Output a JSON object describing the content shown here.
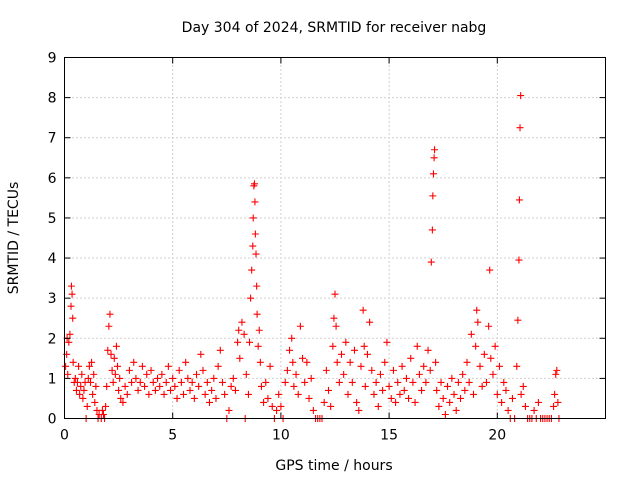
{
  "chart_data": {
    "type": "scatter",
    "title": "Day 304 of 2024, SRMTID for receiver nabg",
    "xlabel": "GPS time / hours",
    "ylabel": "SRMTID / TECUs",
    "xlim": [
      0,
      25
    ],
    "ylim": [
      0,
      9
    ],
    "xticks": [
      0,
      5,
      10,
      15,
      20
    ],
    "xtick_labels": [
      "0",
      "5",
      "10",
      "15",
      "20"
    ],
    "yticks": [
      0,
      1,
      2,
      3,
      4,
      5,
      6,
      7,
      8,
      9
    ],
    "ytick_labels": [
      "0",
      "1",
      "2",
      "3",
      "4",
      "5",
      "6",
      "7",
      "8",
      "9"
    ],
    "grid": true,
    "legend": "none",
    "marker": "plus",
    "series": [
      {
        "name": "nabg",
        "color": "#ff0000",
        "points": [
          [
            0.05,
            1.3
          ],
          [
            0.1,
            1.6
          ],
          [
            0.12,
            2.0
          ],
          [
            0.15,
            1.1
          ],
          [
            0.2,
            1.9
          ],
          [
            0.25,
            2.1
          ],
          [
            0.3,
            2.8
          ],
          [
            0.32,
            3.3
          ],
          [
            0.35,
            3.1
          ],
          [
            0.38,
            2.5
          ],
          [
            0.4,
            1.4
          ],
          [
            0.45,
            0.9
          ],
          [
            0.5,
            1.0
          ],
          [
            0.55,
            0.7
          ],
          [
            0.6,
            0.9
          ],
          [
            0.65,
            1.3
          ],
          [
            0.7,
            0.6
          ],
          [
            0.75,
            0.8
          ],
          [
            0.8,
            1.1
          ],
          [
            0.85,
            0.5
          ],
          [
            0.9,
            0.7
          ],
          [
            0.95,
            0.9
          ],
          [
            1.0,
            0.0
          ],
          [
            1.05,
            0.3
          ],
          [
            1.1,
            1.0
          ],
          [
            1.15,
            1.3
          ],
          [
            1.2,
            0.9
          ],
          [
            1.25,
            1.4
          ],
          [
            1.3,
            0.6
          ],
          [
            1.35,
            1.1
          ],
          [
            1.4,
            0.4
          ],
          [
            1.45,
            0.8
          ],
          [
            1.5,
            0.2
          ],
          [
            1.55,
            0.0
          ],
          [
            1.6,
            0.1
          ],
          [
            1.7,
            0.0
          ],
          [
            1.75,
            0.2
          ],
          [
            1.8,
            0.1
          ],
          [
            1.85,
            0.0
          ],
          [
            1.9,
            0.3
          ],
          [
            1.95,
            0.8
          ],
          [
            2.0,
            1.7
          ],
          [
            2.05,
            2.3
          ],
          [
            2.1,
            2.6
          ],
          [
            2.15,
            1.6
          ],
          [
            2.2,
            1.2
          ],
          [
            2.25,
            0.9
          ],
          [
            2.3,
            1.5
          ],
          [
            2.35,
            1.1
          ],
          [
            2.4,
            1.8
          ],
          [
            2.45,
            1.3
          ],
          [
            2.5,
            0.7
          ],
          [
            2.55,
            1.0
          ],
          [
            2.6,
            0.5
          ],
          [
            2.7,
            0.4
          ],
          [
            2.8,
            0.8
          ],
          [
            2.9,
            0.6
          ],
          [
            3.0,
            1.2
          ],
          [
            3.1,
            0.9
          ],
          [
            3.2,
            1.4
          ],
          [
            3.3,
            1.0
          ],
          [
            3.4,
            0.7
          ],
          [
            3.5,
            0.9
          ],
          [
            3.6,
            1.3
          ],
          [
            3.7,
            0.8
          ],
          [
            3.8,
            1.1
          ],
          [
            3.9,
            0.6
          ],
          [
            4.0,
            1.2
          ],
          [
            4.1,
            0.9
          ],
          [
            4.2,
            0.7
          ],
          [
            4.3,
            1.0
          ],
          [
            4.4,
            0.8
          ],
          [
            4.5,
            1.1
          ],
          [
            4.6,
            0.6
          ],
          [
            4.7,
            0.9
          ],
          [
            4.8,
            1.3
          ],
          [
            4.9,
            0.7
          ],
          [
            5.0,
            1.0
          ],
          [
            5.1,
            0.8
          ],
          [
            5.2,
            0.5
          ],
          [
            5.3,
            1.2
          ],
          [
            5.4,
            0.9
          ],
          [
            5.5,
            0.6
          ],
          [
            5.6,
            1.4
          ],
          [
            5.7,
            1.0
          ],
          [
            5.8,
            0.7
          ],
          [
            5.9,
            0.9
          ],
          [
            6.0,
            0.5
          ],
          [
            6.1,
            1.1
          ],
          [
            6.2,
            0.8
          ],
          [
            6.3,
            1.6
          ],
          [
            6.4,
            1.2
          ],
          [
            6.5,
            0.6
          ],
          [
            6.6,
            0.9
          ],
          [
            6.7,
            0.4
          ],
          [
            6.8,
            0.7
          ],
          [
            6.9,
            1.0
          ],
          [
            7.0,
            0.5
          ],
          [
            7.1,
            1.3
          ],
          [
            7.2,
            1.7
          ],
          [
            7.3,
            0.9
          ],
          [
            7.4,
            0.6
          ],
          [
            7.5,
            0.0
          ],
          [
            7.6,
            0.2
          ],
          [
            7.7,
            0.8
          ],
          [
            7.8,
            1.0
          ],
          [
            7.9,
            0.7
          ],
          [
            8.0,
            1.9
          ],
          [
            8.05,
            2.2
          ],
          [
            8.1,
            1.5
          ],
          [
            8.2,
            2.4
          ],
          [
            8.3,
            2.1
          ],
          [
            8.35,
            0.0
          ],
          [
            8.4,
            1.1
          ],
          [
            8.5,
            0.6
          ],
          [
            8.55,
            1.9
          ],
          [
            8.6,
            3.0
          ],
          [
            8.65,
            3.7
          ],
          [
            8.7,
            4.3
          ],
          [
            8.72,
            5.0
          ],
          [
            8.75,
            5.8
          ],
          [
            8.78,
            5.85
          ],
          [
            8.8,
            5.4
          ],
          [
            8.82,
            4.6
          ],
          [
            8.85,
            4.1
          ],
          [
            8.88,
            3.3
          ],
          [
            8.9,
            2.6
          ],
          [
            8.95,
            1.8
          ],
          [
            9.0,
            2.2
          ],
          [
            9.05,
            1.4
          ],
          [
            9.1,
            0.8
          ],
          [
            9.2,
            0.4
          ],
          [
            9.3,
            0.9
          ],
          [
            9.4,
            0.5
          ],
          [
            9.5,
            1.3
          ],
          [
            9.6,
            0.3
          ],
          [
            9.7,
            0.0
          ],
          [
            9.8,
            0.2
          ],
          [
            9.9,
            0.6
          ],
          [
            10.0,
            0.3
          ],
          [
            10.1,
            0.0
          ],
          [
            10.2,
            0.9
          ],
          [
            10.3,
            1.2
          ],
          [
            10.4,
            1.7
          ],
          [
            10.5,
            2.0
          ],
          [
            10.55,
            1.4
          ],
          [
            10.6,
            0.8
          ],
          [
            10.7,
            1.1
          ],
          [
            10.8,
            0.6
          ],
          [
            10.9,
            2.3
          ],
          [
            11.0,
            1.5
          ],
          [
            11.1,
            0.9
          ],
          [
            11.2,
            1.4
          ],
          [
            11.3,
            0.5
          ],
          [
            11.4,
            1.0
          ],
          [
            11.5,
            0.2
          ],
          [
            11.6,
            0.0
          ],
          [
            11.7,
            0.0
          ],
          [
            11.8,
            0.0
          ],
          [
            11.9,
            0.0
          ],
          [
            12.0,
            0.4
          ],
          [
            12.1,
            1.2
          ],
          [
            12.2,
            0.7
          ],
          [
            12.3,
            0.3
          ],
          [
            12.4,
            1.8
          ],
          [
            12.45,
            2.5
          ],
          [
            12.5,
            3.1
          ],
          [
            12.55,
            2.3
          ],
          [
            12.6,
            1.4
          ],
          [
            12.7,
            0.9
          ],
          [
            12.8,
            1.6
          ],
          [
            12.9,
            1.1
          ],
          [
            13.0,
            1.9
          ],
          [
            13.1,
            0.6
          ],
          [
            13.2,
            1.4
          ],
          [
            13.3,
            0.9
          ],
          [
            13.4,
            1.7
          ],
          [
            13.5,
            0.4
          ],
          [
            13.6,
            0.2
          ],
          [
            13.7,
            1.3
          ],
          [
            13.8,
            2.7
          ],
          [
            13.85,
            1.8
          ],
          [
            13.9,
            0.8
          ],
          [
            14.0,
            1.6
          ],
          [
            14.1,
            2.4
          ],
          [
            14.2,
            1.2
          ],
          [
            14.3,
            0.6
          ],
          [
            14.4,
            0.9
          ],
          [
            14.5,
            0.3
          ],
          [
            14.6,
            1.1
          ],
          [
            14.7,
            0.7
          ],
          [
            14.8,
            1.4
          ],
          [
            14.9,
            1.9
          ],
          [
            15.0,
            0.8
          ],
          [
            15.1,
            0.5
          ],
          [
            15.2,
            1.2
          ],
          [
            15.3,
            0.4
          ],
          [
            15.4,
            0.9
          ],
          [
            15.5,
            0.6
          ],
          [
            15.6,
            1.3
          ],
          [
            15.7,
            0.7
          ],
          [
            15.8,
            1.0
          ],
          [
            15.9,
            0.5
          ],
          [
            16.0,
            1.5
          ],
          [
            16.1,
            0.9
          ],
          [
            16.2,
            0.4
          ],
          [
            16.3,
            1.8
          ],
          [
            16.4,
            1.1
          ],
          [
            16.5,
            0.7
          ],
          [
            16.6,
            1.3
          ],
          [
            16.7,
            0.9
          ],
          [
            16.8,
            1.7
          ],
          [
            16.9,
            1.2
          ],
          [
            16.95,
            3.9
          ],
          [
            17.0,
            4.7
          ],
          [
            17.02,
            5.55
          ],
          [
            17.05,
            6.1
          ],
          [
            17.08,
            6.5
          ],
          [
            17.1,
            6.7
          ],
          [
            17.15,
            1.4
          ],
          [
            17.2,
            0.7
          ],
          [
            17.3,
            0.3
          ],
          [
            17.4,
            0.9
          ],
          [
            17.5,
            0.5
          ],
          [
            17.6,
            0.1
          ],
          [
            17.7,
            0.8
          ],
          [
            17.8,
            0.4
          ],
          [
            17.9,
            1.0
          ],
          [
            18.0,
            0.6
          ],
          [
            18.1,
            0.2
          ],
          [
            18.2,
            0.9
          ],
          [
            18.3,
            0.5
          ],
          [
            18.4,
            1.1
          ],
          [
            18.5,
            0.7
          ],
          [
            18.6,
            1.4
          ],
          [
            18.7,
            0.9
          ],
          [
            18.8,
            2.1
          ],
          [
            18.9,
            0.6
          ],
          [
            19.0,
            1.8
          ],
          [
            19.05,
            2.7
          ],
          [
            19.1,
            2.4
          ],
          [
            19.2,
            1.3
          ],
          [
            19.3,
            0.8
          ],
          [
            19.4,
            1.6
          ],
          [
            19.5,
            0.9
          ],
          [
            19.6,
            2.3
          ],
          [
            19.65,
            3.7
          ],
          [
            19.7,
            1.5
          ],
          [
            19.8,
            1.1
          ],
          [
            19.9,
            1.8
          ],
          [
            20.0,
            0.6
          ],
          [
            20.1,
            1.3
          ],
          [
            20.2,
            0.4
          ],
          [
            20.3,
            0.9
          ],
          [
            20.4,
            0.7
          ],
          [
            20.5,
            0.2
          ],
          [
            20.6,
            0.0
          ],
          [
            20.7,
            0.5
          ],
          [
            20.8,
            0.0
          ],
          [
            20.9,
            1.3
          ],
          [
            20.95,
            2.45
          ],
          [
            21.0,
            3.95
          ],
          [
            21.02,
            5.45
          ],
          [
            21.05,
            7.25
          ],
          [
            21.08,
            8.05
          ],
          [
            21.1,
            0.6
          ],
          [
            21.2,
            0.8
          ],
          [
            21.3,
            0.3
          ],
          [
            21.4,
            0.0
          ],
          [
            21.5,
            0.0
          ],
          [
            21.6,
            0.0
          ],
          [
            21.7,
            0.2
          ],
          [
            21.8,
            0.0
          ],
          [
            21.9,
            0.4
          ],
          [
            22.0,
            0.0
          ],
          [
            22.1,
            0.0
          ],
          [
            22.2,
            0.0
          ],
          [
            22.3,
            0.0
          ],
          [
            22.4,
            0.0
          ],
          [
            22.5,
            0.0
          ],
          [
            22.6,
            0.3
          ],
          [
            22.65,
            0.6
          ],
          [
            22.7,
            1.1
          ],
          [
            22.75,
            1.2
          ],
          [
            22.8,
            0.4
          ],
          [
            22.85,
            0.0
          ]
        ]
      }
    ]
  }
}
